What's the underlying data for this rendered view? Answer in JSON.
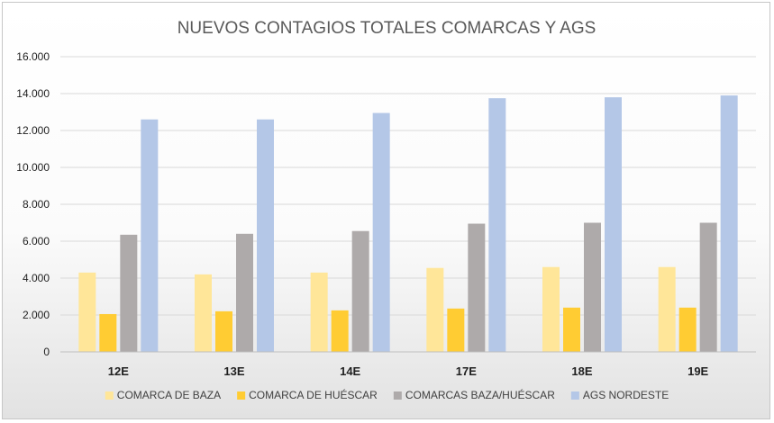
{
  "chart_data": {
    "type": "bar",
    "title": "NUEVOS CONTAGIOS TOTALES COMARCAS Y AGS",
    "xlabel": "",
    "ylabel": "",
    "categories": [
      "12E",
      "13E",
      "14E",
      "17E",
      "18E",
      "19E"
    ],
    "ylim": [
      0,
      16000
    ],
    "yticks": [
      0,
      2000,
      4000,
      6000,
      8000,
      10000,
      12000,
      14000,
      16000
    ],
    "ytick_labels": [
      "0",
      "2.000",
      "4.000",
      "6.000",
      "8.000",
      "10.000",
      "12.000",
      "14.000",
      "16.000"
    ],
    "grid": true,
    "legend_position": "bottom",
    "series": [
      {
        "name": "COMARCA DE BAZA",
        "color": "#ffe699",
        "values": [
          4300,
          4200,
          4300,
          4550,
          4600,
          4600
        ]
      },
      {
        "name": "COMARCA DE HUÉSCAR",
        "color": "#ffcc33",
        "values": [
          2050,
          2200,
          2250,
          2350,
          2400,
          2400
        ]
      },
      {
        "name": "COMARCAS BAZA/HUÉSCAR",
        "color": "#aeaaaa",
        "values": [
          6350,
          6400,
          6550,
          6950,
          7000,
          7000
        ]
      },
      {
        "name": "AGS NORDESTE",
        "color": "#b4c7e7",
        "values": [
          12600,
          12600,
          12950,
          13750,
          13800,
          13900
        ]
      }
    ]
  }
}
